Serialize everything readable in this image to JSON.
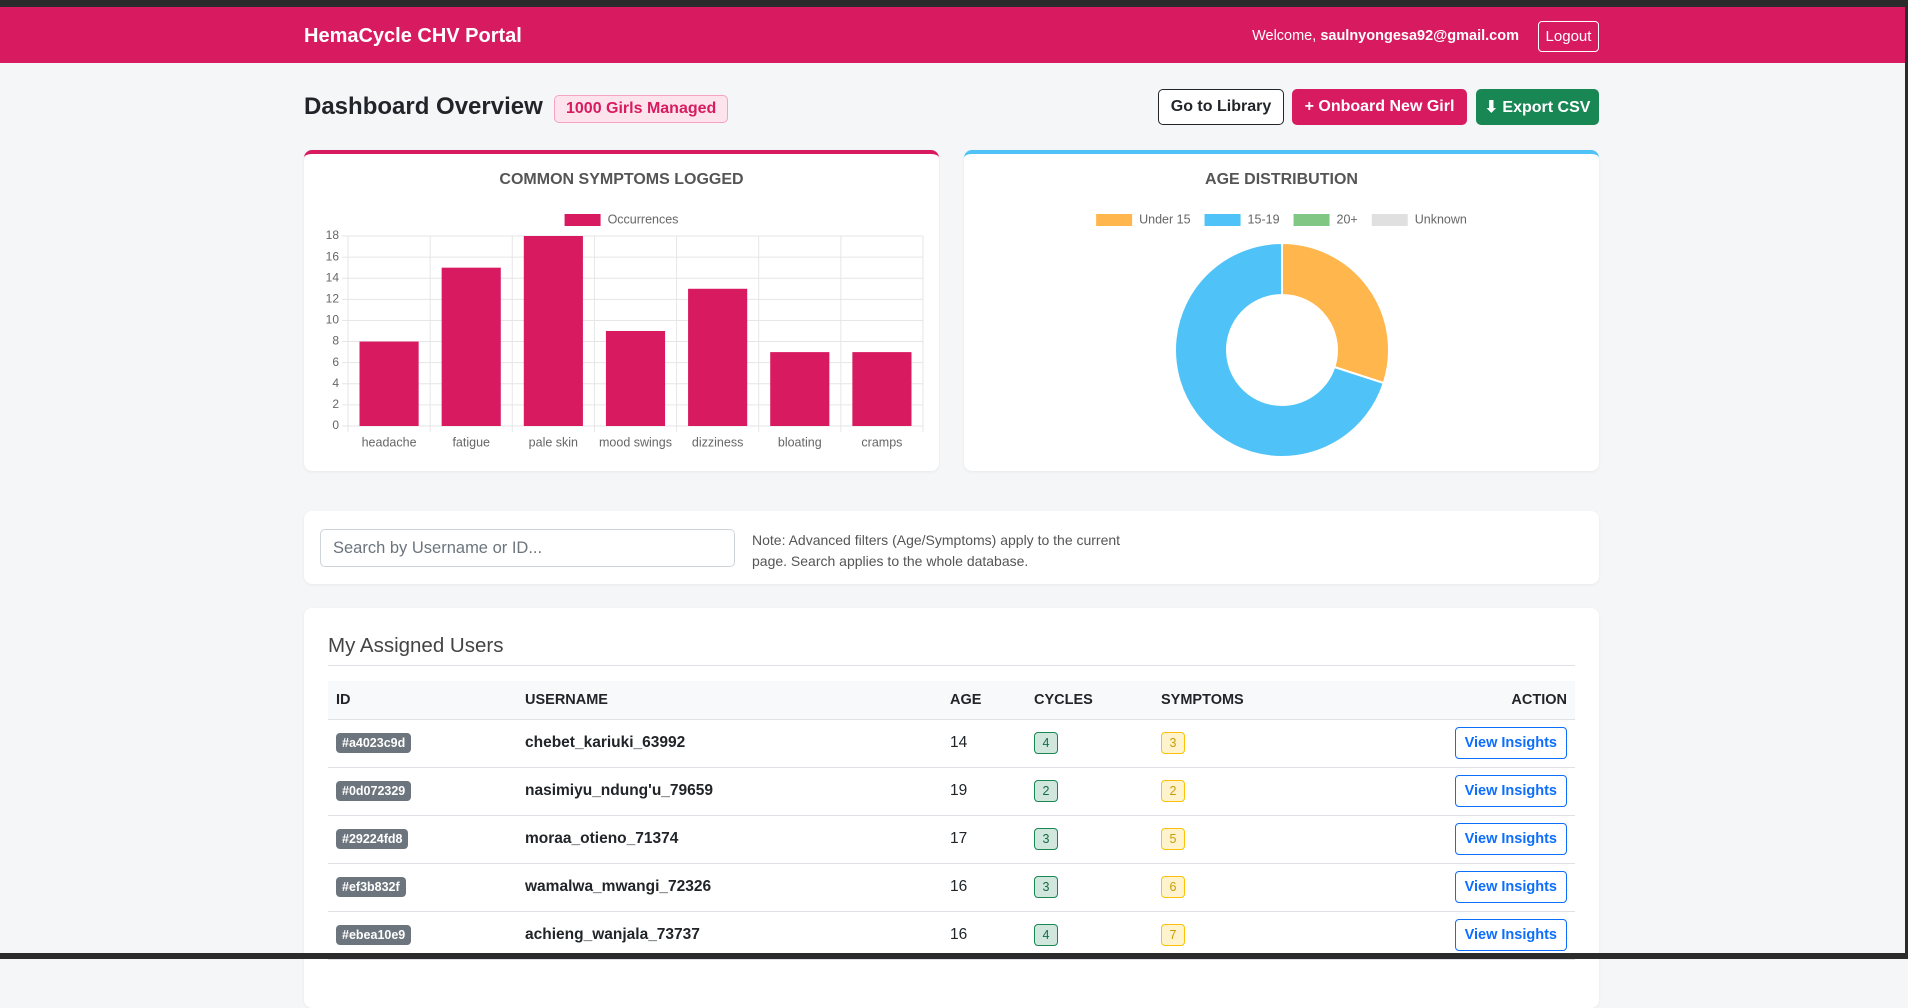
{
  "navbar": {
    "brand": "HemaCycle CHV Portal",
    "welcome": "Welcome,",
    "email": "saulnyongesa92@gmail.com",
    "logout": "Logout"
  },
  "header": {
    "title": "Dashboard Overview",
    "badge": "1000 Girls Managed",
    "buttons": [
      "Go to Library",
      "+ Onboard New Girl",
      "⬇ Export CSV"
    ]
  },
  "chart_data": [
    {
      "type": "bar",
      "title": "COMMON SYMPTOMS LOGGED",
      "categories": [
        "headache",
        "fatigue",
        "pale skin",
        "mood swings",
        "dizziness",
        "bloating",
        "cramps"
      ],
      "series": [
        {
          "name": "Occurrences",
          "color": "#d81b60",
          "values": [
            8,
            15,
            18,
            9,
            13,
            7,
            7
          ]
        }
      ],
      "ylim": [
        0,
        18
      ],
      "yticks": [
        0,
        2,
        4,
        6,
        8,
        10,
        12,
        14,
        16,
        18
      ],
      "grid": true,
      "legend": "top"
    },
    {
      "type": "doughnut",
      "title": "AGE DISTRIBUTION",
      "categories": [
        "Under 15",
        "15-19",
        "20+",
        "Unknown"
      ],
      "values": [
        30,
        70,
        0,
        0
      ],
      "colors": [
        "#ffb74d",
        "#4fc3f7",
        "#81c784",
        "#e0e0e0"
      ],
      "legend": "top"
    }
  ],
  "search": {
    "placeholder": "Search by Username or ID...",
    "note": "Note: Advanced filters (Age/Symptoms) apply to the current page. Search applies to the whole database."
  },
  "table": {
    "title": "My Assigned Users",
    "columns": [
      "ID",
      "USERNAME",
      "AGE",
      "CYCLES",
      "SYMPTOMS",
      "ACTION"
    ],
    "rows": [
      [
        "#a4023c9d",
        "chebet_kariuki_63992",
        14,
        4,
        3,
        "View Insights"
      ],
      [
        "#0d072329",
        "nasimiyu_ndung'u_79659",
        19,
        2,
        2,
        "View Insights"
      ],
      [
        "#29224fd8",
        "moraa_otieno_71374",
        17,
        3,
        5,
        "View Insights"
      ],
      [
        "#ef3b832f",
        "wamalwa_mwangi_72326",
        16,
        3,
        6,
        "View Insights"
      ],
      [
        "#ebea10e9",
        "achieng_wanjala_73737",
        16,
        4,
        7,
        "View Insights"
      ]
    ]
  }
}
